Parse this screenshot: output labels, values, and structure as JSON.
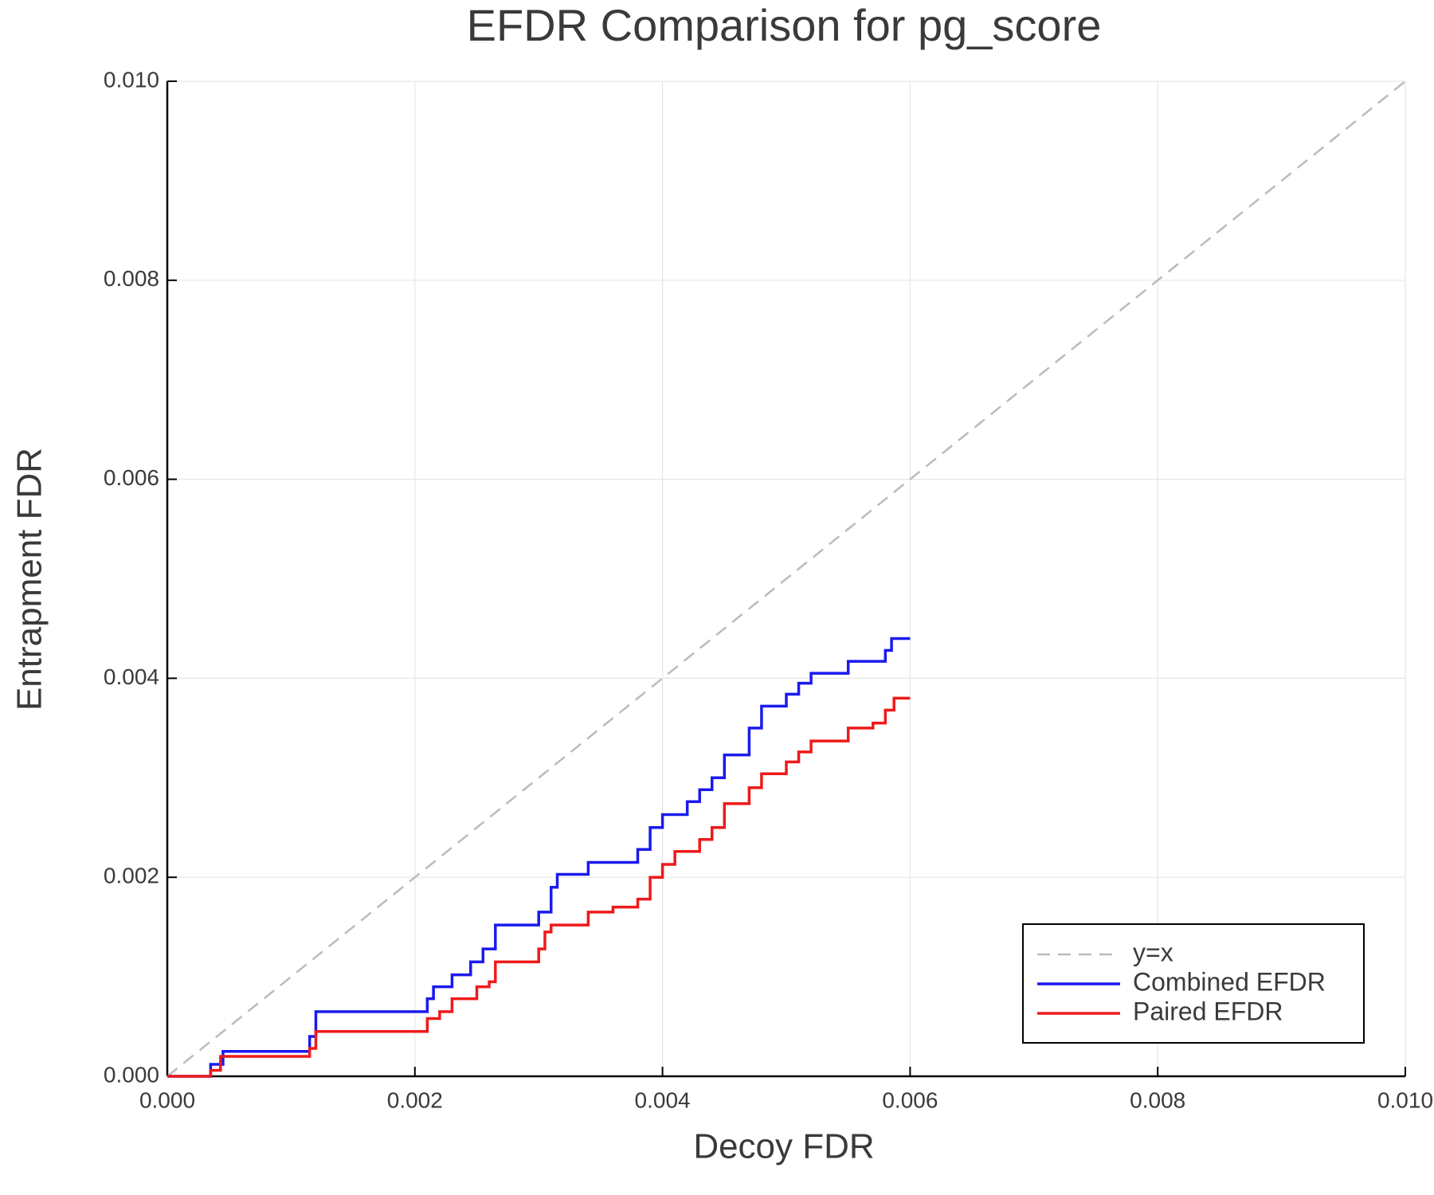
{
  "chart_data": {
    "type": "line",
    "title": "EFDR Comparison for pg_score",
    "x_label": "Decoy FDR",
    "y_label": "Entrapment FDR",
    "xlim": [
      0,
      0.01
    ],
    "ylim": [
      0,
      0.01
    ],
    "xticks": [
      {
        "value": 0,
        "label": "0.000"
      },
      {
        "value": 0.002,
        "label": "0.002"
      },
      {
        "value": 0.004,
        "label": "0.004"
      },
      {
        "value": 0.006,
        "label": "0.006"
      },
      {
        "value": 0.008,
        "label": "0.008"
      },
      {
        "value": 0.01,
        "label": "0.010"
      }
    ],
    "yticks": [
      {
        "value": 0,
        "label": "0.000"
      },
      {
        "value": 0.002,
        "label": "0.002"
      },
      {
        "value": 0.004,
        "label": "0.004"
      },
      {
        "value": 0.006,
        "label": "0.006"
      },
      {
        "value": 0.008,
        "label": "0.008"
      },
      {
        "value": 0.01,
        "label": "0.010"
      }
    ],
    "grid": true,
    "legend": "bottom right",
    "series": [
      {
        "name": "y=x",
        "color": "#bbbbbb",
        "style": "dashed",
        "x": [
          0,
          0.01
        ],
        "values": [
          0,
          0.01
        ]
      },
      {
        "name": "Combined EFDR",
        "color": "#1a1aee",
        "style": "solid",
        "x": [
          0,
          0.00035,
          0.00035,
          0.00045,
          0.00045,
          0.00115,
          0.00115,
          0.0012,
          0.0012,
          0.0021,
          0.0021,
          0.00215,
          0.00215,
          0.0023,
          0.0023,
          0.00245,
          0.00245,
          0.00255,
          0.00255,
          0.00265,
          0.00265,
          0.003,
          0.003,
          0.0031,
          0.0031,
          0.00315,
          0.00315,
          0.0034,
          0.0034,
          0.0038,
          0.0038,
          0.0039,
          0.0039,
          0.004,
          0.004,
          0.0042,
          0.0042,
          0.0043,
          0.0043,
          0.0044,
          0.0044,
          0.0045,
          0.0045,
          0.0047,
          0.0047,
          0.0048,
          0.0048,
          0.005,
          0.005,
          0.0051,
          0.0051,
          0.0052,
          0.0052,
          0.0055,
          0.0055,
          0.0058,
          0.0058,
          0.00585,
          0.00585,
          0.006
        ],
        "values": [
          0,
          0,
          0.00012,
          0.00012,
          0.00025,
          0.00025,
          0.0004,
          0.0004,
          0.00065,
          0.00065,
          0.00078,
          0.00078,
          0.0009,
          0.0009,
          0.00102,
          0.00102,
          0.00115,
          0.00115,
          0.00128,
          0.00128,
          0.00152,
          0.00152,
          0.00165,
          0.00165,
          0.0019,
          0.0019,
          0.00203,
          0.00203,
          0.00215,
          0.00215,
          0.00228,
          0.00228,
          0.0025,
          0.0025,
          0.00263,
          0.00263,
          0.00276,
          0.00276,
          0.00288,
          0.00288,
          0.003,
          0.003,
          0.00323,
          0.00323,
          0.0035,
          0.0035,
          0.00372,
          0.00372,
          0.00384,
          0.00384,
          0.00395,
          0.00395,
          0.00405,
          0.00405,
          0.00417,
          0.00417,
          0.00428,
          0.00428,
          0.0044,
          0.0044
        ]
      },
      {
        "name": "Paired EFDR",
        "color": "#ee1a1a",
        "style": "solid",
        "x": [
          0,
          0.00035,
          0.00035,
          0.00043,
          0.00043,
          0.00115,
          0.00115,
          0.0012,
          0.0012,
          0.0021,
          0.0021,
          0.0022,
          0.0022,
          0.0023,
          0.0023,
          0.0025,
          0.0025,
          0.0026,
          0.0026,
          0.00265,
          0.00265,
          0.003,
          0.003,
          0.00305,
          0.00305,
          0.0031,
          0.0031,
          0.0034,
          0.0034,
          0.0036,
          0.0036,
          0.0038,
          0.0038,
          0.0039,
          0.0039,
          0.004,
          0.004,
          0.0041,
          0.0041,
          0.0043,
          0.0043,
          0.0044,
          0.0044,
          0.0045,
          0.0045,
          0.0047,
          0.0047,
          0.0048,
          0.0048,
          0.005,
          0.005,
          0.0051,
          0.0051,
          0.0052,
          0.0052,
          0.0055,
          0.0055,
          0.0057,
          0.0057,
          0.0058,
          0.0058,
          0.00587,
          0.00587,
          0.006
        ],
        "values": [
          0,
          0,
          6e-05,
          6e-05,
          0.0002,
          0.0002,
          0.00028,
          0.00028,
          0.00045,
          0.00045,
          0.00058,
          0.00058,
          0.00065,
          0.00065,
          0.00078,
          0.00078,
          0.0009,
          0.0009,
          0.00095,
          0.00095,
          0.00115,
          0.00115,
          0.00128,
          0.00128,
          0.00145,
          0.00145,
          0.00152,
          0.00152,
          0.00165,
          0.00165,
          0.0017,
          0.0017,
          0.00178,
          0.00178,
          0.002,
          0.002,
          0.00213,
          0.00213,
          0.00226,
          0.00226,
          0.00238,
          0.00238,
          0.0025,
          0.0025,
          0.00274,
          0.00274,
          0.0029,
          0.0029,
          0.00304,
          0.00304,
          0.00316,
          0.00316,
          0.00326,
          0.00326,
          0.00337,
          0.00337,
          0.0035,
          0.0035,
          0.00355,
          0.00355,
          0.00368,
          0.00368,
          0.0038,
          0.0038
        ]
      }
    ]
  }
}
